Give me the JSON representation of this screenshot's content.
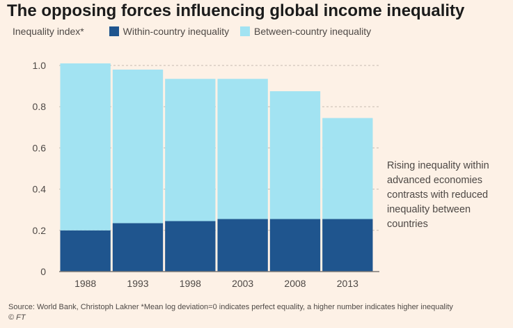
{
  "colors": {
    "background": "#fdf1e6",
    "within": "#1f558e",
    "between": "#a2e3f2",
    "grid": "#c8bcb1",
    "axis": "#7f7a76"
  },
  "annotation": "Rising inequality within advanced economies contrasts with reduced inequality between countries",
  "source": "Source: World Bank, Christoph Lakner *Mean log deviation=0 indicates perfect equality, a higher number indicates higher inequality",
  "credit": "© FT",
  "chart_data": {
    "type": "bar",
    "stacked": true,
    "title": "The opposing forces influencing global income inequality",
    "ylabel": "Inequality index*",
    "xlabel": "",
    "categories": [
      "1988",
      "1993",
      "1998",
      "2003",
      "2008",
      "2013"
    ],
    "series": [
      {
        "name": "Within-country inequality",
        "values": [
          0.2,
          0.235,
          0.245,
          0.255,
          0.255,
          0.255
        ]
      },
      {
        "name": "Between-country inequality",
        "values": [
          0.81,
          0.745,
          0.69,
          0.68,
          0.62,
          0.49
        ]
      }
    ],
    "ylim": [
      0,
      1.0
    ],
    "yticks": [
      "0",
      "0.2",
      "0.4",
      "0.6",
      "0.8",
      "1.0"
    ],
    "grid": true,
    "legend": "top-left"
  }
}
